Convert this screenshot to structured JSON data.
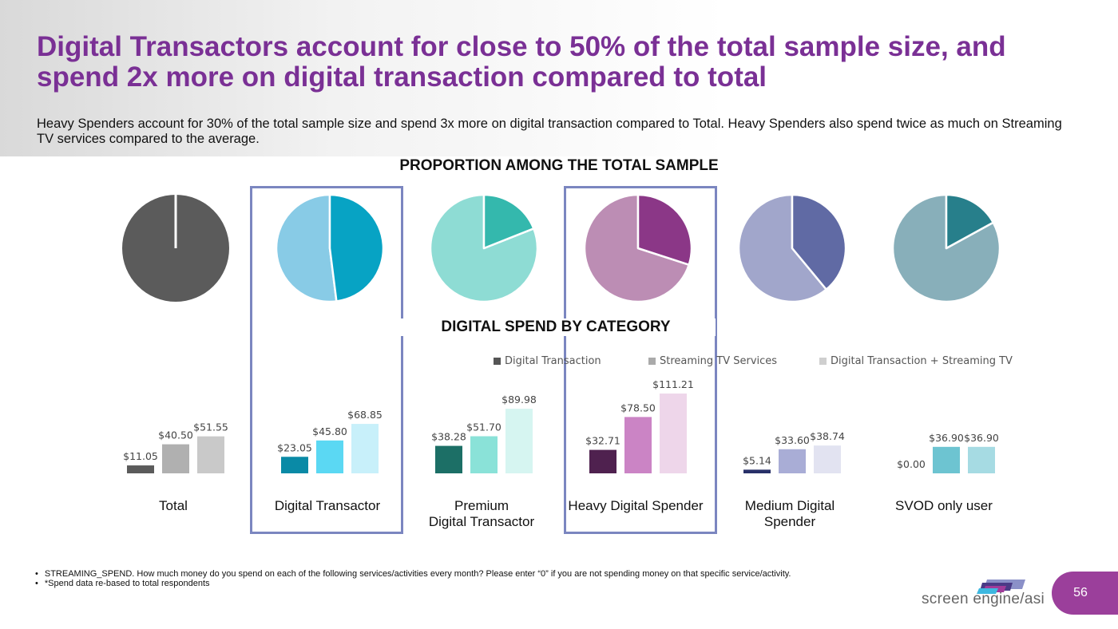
{
  "header": {
    "title": "Digital Transactors account for close to 50% of the total sample size, and spend 2x more on digital transaction compared to total",
    "subtitle": "Heavy Spenders account for 30% of the total sample size and spend 3x more on digital transaction compared to Total. Heavy Spenders also spend twice as much on Streaming TV services compared to the average."
  },
  "sections": {
    "pie_heading": "PROPORTION AMONG THE TOTAL SAMPLE",
    "bar_heading": "DIGITAL SPEND BY CATEGORY"
  },
  "highlighted_groups": [
    "Digital Transactor",
    "Heavy Digital Spender"
  ],
  "chart_data": [
    {
      "type": "pie",
      "title": "PROPORTION AMONG THE TOTAL SAMPLE",
      "note": "Each pie shows the segment share of the total sample (estimated from slice angles)",
      "pies": [
        {
          "name": "Total",
          "share_pct": 100,
          "colors": {
            "segment": "#5b5b5b",
            "rest": "#5b5b5b"
          }
        },
        {
          "name": "Digital Transactor",
          "share_pct": 48,
          "colors": {
            "segment": "#07a3c4",
            "rest": "#88cbe6"
          }
        },
        {
          "name": "Premium Digital Transactor",
          "share_pct": 19,
          "colors": {
            "segment": "#34b8ad",
            "rest": "#8edcd4"
          }
        },
        {
          "name": "Heavy Digital Spender",
          "share_pct": 30,
          "colors": {
            "segment": "#8b3787",
            "rest": "#bc8db4"
          }
        },
        {
          "name": "Medium Digital Spender",
          "share_pct": 39,
          "colors": {
            "segment": "#606aa4",
            "rest": "#a1a6cb"
          }
        },
        {
          "name": "SVOD only user",
          "share_pct": 17,
          "colors": {
            "segment": "#277f8b",
            "rest": "#88afba"
          }
        }
      ]
    },
    {
      "type": "bar",
      "title": "DIGITAL SPEND BY CATEGORY",
      "categories": [
        "Total",
        "Digital Transactor",
        "Premium\nDigital Transactor",
        "Heavy Digital Spender",
        "Medium Digital\nSpender",
        "SVOD only user"
      ],
      "legend": [
        "Digital Transaction",
        "Streaming TV Services",
        "Digital Transaction + Streaming TV"
      ],
      "legend_colors": [
        "#555555",
        "#aaaaaa",
        "#cfcfcf"
      ],
      "legend_position": "top-right",
      "series": [
        {
          "name": "Digital Transaction",
          "values": [
            11.05,
            23.05,
            38.28,
            32.71,
            5.14,
            0.0
          ]
        },
        {
          "name": "Streaming TV Services",
          "values": [
            40.5,
            45.8,
            51.7,
            78.5,
            33.6,
            36.9
          ]
        },
        {
          "name": "Digital Transaction + Streaming TV",
          "values": [
            51.55,
            68.85,
            89.98,
            111.21,
            38.74,
            36.9
          ]
        }
      ],
      "labels": [
        [
          "$11.05",
          "$40.50",
          "$51.55"
        ],
        [
          "$23.05",
          "$45.80",
          "$68.85"
        ],
        [
          "$38.28",
          "$51.70",
          "$89.98"
        ],
        [
          "$32.71",
          "$78.50",
          "$111.21"
        ],
        [
          "$5.14",
          "$33.60",
          "$38.74"
        ],
        [
          "$0.00",
          "$36.90",
          "$36.90"
        ]
      ],
      "group_colors": [
        [
          "#5b5b5b",
          "#b0b0b0",
          "#c9c9c9"
        ],
        [
          "#0a8aa6",
          "#5bd8f3",
          "#c8f0fa"
        ],
        [
          "#1c6f66",
          "#8ae2d8",
          "#d6f5f1"
        ],
        [
          "#4f214f",
          "#cb84c5",
          "#eed6ea"
        ],
        [
          "#283068",
          "#a9add6",
          "#e2e3f1"
        ],
        [
          "#1e6f87",
          "#6dc4d1",
          "#a6dbe3"
        ]
      ],
      "xlabel": "",
      "ylabel": "",
      "grid": false
    }
  ],
  "footnotes": [
    "STREAMING_SPEND. How much money do you spend on each of the following services/activities every month? Please enter “0” if you are not spending money on that specific service/activity.",
    "*Spend data re-based to total respondents"
  ],
  "footer": {
    "logo_text": "screen engine/asi",
    "page_number": "56"
  }
}
